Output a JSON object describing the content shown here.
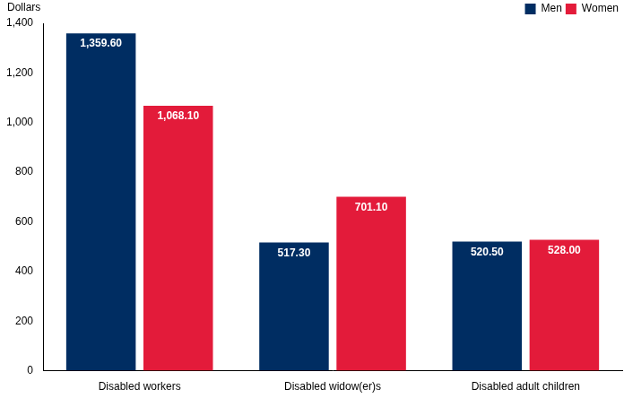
{
  "chart_data": {
    "type": "bar",
    "ylabel": "Dollars",
    "categories": [
      "Disabled workers",
      "Disabled widow(er)s",
      "Disabled adult children"
    ],
    "series": [
      {
        "name": "Men",
        "color": "#002d62",
        "values": [
          1359.6,
          517.3,
          520.5
        ],
        "value_labels": [
          "1,359.60",
          "517.30",
          "520.50"
        ]
      },
      {
        "name": "Women",
        "color": "#e31b3a",
        "values": [
          1068.1,
          701.1,
          528.0
        ],
        "value_labels": [
          "1,068.10",
          "701.10",
          "528.00"
        ]
      }
    ],
    "ylim": [
      0,
      1400
    ],
    "yticks": [
      0,
      200,
      400,
      600,
      800,
      {
        "value": 1000,
        "label": "1,000"
      },
      {
        "value": 1200,
        "label": "1,200"
      },
      {
        "value": 1400,
        "label": "1,400"
      }
    ],
    "grid": false,
    "legend": "top-right",
    "data_labels": true
  }
}
